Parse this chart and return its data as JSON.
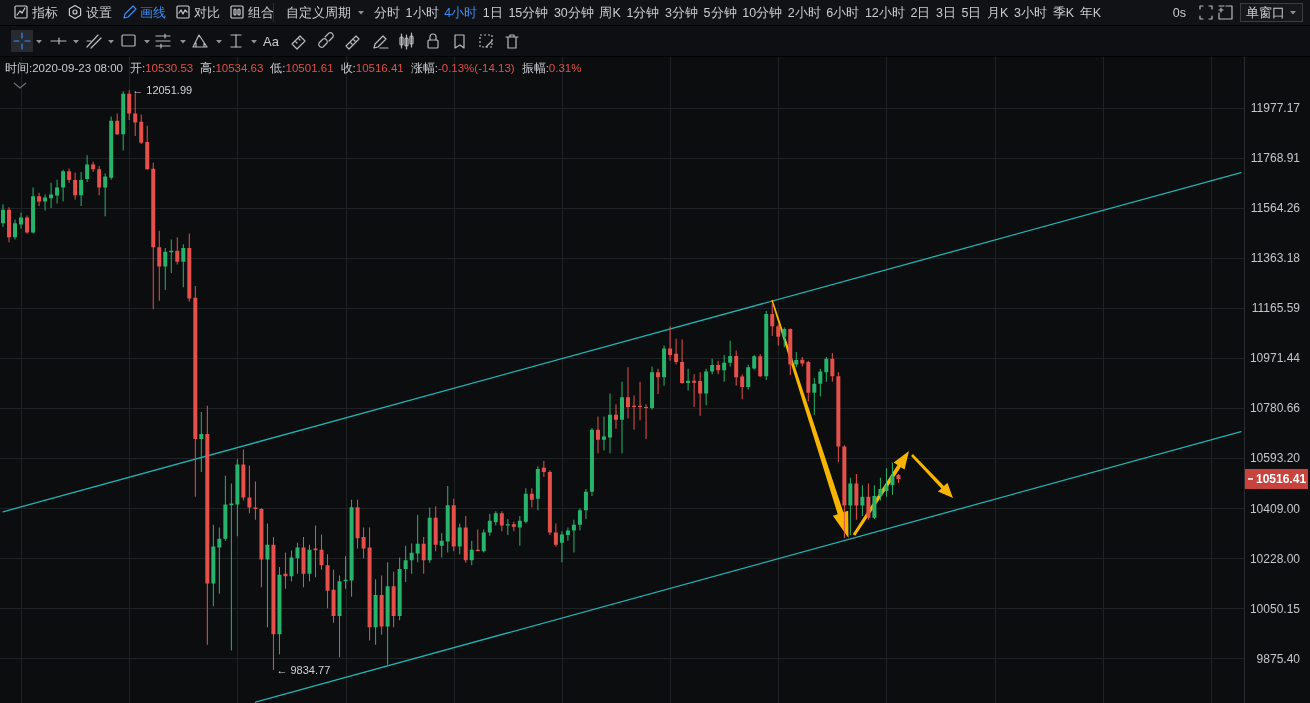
{
  "chart_data": {
    "type": "candlestick",
    "categories": [
      null,
      null,
      null,
      null,
      null,
      null,
      null,
      null,
      null,
      null,
      null,
      null,
      null,
      null,
      null,
      null,
      null,
      null,
      null,
      null,
      null,
      null,
      null,
      null,
      null,
      null,
      null,
      null,
      null,
      null,
      null,
      null,
      null,
      null,
      null,
      null,
      null,
      null,
      null,
      null,
      null,
      null,
      null,
      null,
      null,
      null,
      null,
      null,
      null,
      null,
      null,
      null,
      null,
      null,
      null,
      null,
      null,
      null,
      null,
      null,
      null,
      null,
      null,
      null,
      null,
      null,
      null,
      null,
      null,
      null,
      null,
      null,
      null,
      null,
      null,
      null,
      null,
      null,
      null,
      null,
      null,
      null,
      null,
      null,
      null,
      null,
      null,
      null,
      null,
      null,
      null,
      null,
      null,
      null,
      null,
      null,
      null,
      null,
      null,
      null,
      null,
      null,
      null,
      null,
      null,
      null,
      null,
      null,
      null,
      null,
      null,
      null,
      null,
      null,
      null,
      null,
      null,
      null,
      null,
      null,
      null,
      null,
      null,
      null,
      null,
      null,
      null,
      null,
      null,
      null,
      null,
      null,
      null,
      null,
      null,
      null,
      null,
      null,
      null,
      null,
      null,
      null,
      null,
      null,
      null,
      null,
      null,
      null,
      null,
      null,
      null,
      null,
      null,
      null,
      null,
      null,
      null,
      null,
      null,
      null,
      null,
      null,
      null,
      null,
      null,
      null,
      null,
      null,
      null,
      null,
      null,
      null,
      null,
      null,
      null,
      null,
      null,
      null,
      null,
      null,
      null,
      null,
      null,
      null,
      null,
      null,
      null,
      null,
      null,
      null,
      null,
      null,
      null,
      null,
      null,
      null,
      null,
      null,
      null,
      null,
      null,
      null,
      null,
      null,
      null,
      null,
      null
    ],
    "ohlc": [
      [
        11503,
        11580,
        11488,
        11557
      ],
      [
        11557,
        11567,
        11426,
        11446
      ],
      [
        11446,
        11518,
        11437,
        11503
      ],
      [
        11498,
        11546,
        11480,
        11526
      ],
      [
        11526,
        11534,
        11460,
        11465
      ],
      [
        11465,
        11648,
        11461,
        11612
      ],
      [
        11612,
        11626,
        11572,
        11591
      ],
      [
        11591,
        11619,
        11554,
        11607
      ],
      [
        11604,
        11667,
        11564,
        11619
      ],
      [
        11615,
        11679,
        11583,
        11648
      ],
      [
        11648,
        11720,
        11591,
        11714
      ],
      [
        11714,
        11726,
        11667,
        11678
      ],
      [
        11678,
        11709,
        11599,
        11616
      ],
      [
        11616,
        11711,
        11572,
        11678
      ],
      [
        11682,
        11780,
        11670,
        11742
      ],
      [
        11742,
        11753,
        11711,
        11723
      ],
      [
        11723,
        11736,
        11616,
        11648
      ],
      [
        11648,
        11706,
        11531,
        11693
      ],
      [
        11688,
        11941,
        11679,
        11924
      ],
      [
        11924,
        11954,
        11864,
        11867
      ],
      [
        11867,
        12048,
        11800,
        12037
      ],
      [
        12037,
        12051.99,
        11927,
        11954
      ],
      [
        11954,
        12037,
        11860,
        11916
      ],
      [
        11919,
        11950,
        11827,
        11832
      ],
      [
        11835,
        11903,
        11720,
        11723
      ],
      [
        11725,
        11749,
        11161,
        11406
      ],
      [
        11406,
        11472,
        11194,
        11330
      ],
      [
        11330,
        11403,
        11237,
        11388
      ],
      [
        11386,
        11437,
        11304,
        11392
      ],
      [
        11392,
        11446,
        11338,
        11348
      ],
      [
        11348,
        11418,
        11247,
        11403
      ],
      [
        11403,
        11461,
        11191,
        11203
      ],
      [
        11206,
        11252,
        10451,
        10665
      ],
      [
        10665,
        10766,
        10542,
        10683
      ],
      [
        10683,
        10790,
        9923,
        10138
      ],
      [
        10138,
        10349,
        10057,
        10270
      ],
      [
        10267,
        10339,
        10102,
        10298
      ],
      [
        10298,
        10528,
        10291,
        10423
      ],
      [
        10420,
        10500,
        9903,
        10426
      ],
      [
        10423,
        10590,
        10307,
        10570
      ],
      [
        10570,
        10626,
        10437,
        10448
      ],
      [
        10448,
        10565,
        10391,
        10412
      ],
      [
        10412,
        10507,
        10367,
        10406
      ],
      [
        10406,
        10409,
        10125,
        10224
      ],
      [
        10224,
        10353,
        9984,
        10277
      ],
      [
        10277,
        10305,
        9834.77,
        9959
      ],
      [
        9959,
        10197,
        9890,
        10169
      ],
      [
        10173,
        10249,
        10119,
        10164
      ],
      [
        10164,
        10256,
        10146,
        10231
      ],
      [
        10228,
        10284,
        10173,
        10267
      ],
      [
        10267,
        10305,
        10125,
        10173
      ],
      [
        10173,
        10277,
        10146,
        10259
      ],
      [
        10263,
        10346,
        10160,
        10257
      ],
      [
        10259,
        10314,
        10187,
        10203
      ],
      [
        10203,
        10242,
        10050,
        10112
      ],
      [
        10116,
        10187,
        9999,
        10023
      ],
      [
        10023,
        10166,
        9879,
        10146
      ],
      [
        10146,
        10235,
        10119,
        10151
      ],
      [
        10149,
        10440,
        10091,
        10413
      ],
      [
        10413,
        10440,
        10263,
        10300
      ],
      [
        10305,
        10339,
        10228,
        10263
      ],
      [
        10267,
        10339,
        9937,
        9984
      ],
      [
        9984,
        10153,
        9923,
        10097
      ],
      [
        10097,
        10166,
        9957,
        9986
      ],
      [
        9986,
        10214,
        9853,
        10128
      ],
      [
        10128,
        10180,
        9984,
        10023
      ],
      [
        10023,
        10231,
        10008,
        10190
      ],
      [
        10190,
        10273,
        10143,
        10221
      ],
      [
        10221,
        10281,
        10173,
        10248
      ],
      [
        10245,
        10384,
        10214,
        10280
      ],
      [
        10280,
        10305,
        10173,
        10221
      ],
      [
        10221,
        10412,
        10212,
        10374
      ],
      [
        10374,
        10416,
        10253,
        10277
      ],
      [
        10273,
        10319,
        10231,
        10291
      ],
      [
        10288,
        10490,
        10249,
        10420
      ],
      [
        10420,
        10444,
        10253,
        10270
      ],
      [
        10270,
        10353,
        10242,
        10339
      ],
      [
        10339,
        10381,
        10212,
        10221
      ],
      [
        10221,
        10291,
        10203,
        10259
      ],
      [
        10259,
        10332,
        10253,
        10254
      ],
      [
        10253,
        10332,
        10249,
        10321
      ],
      [
        10321,
        10388,
        10309,
        10363
      ],
      [
        10358,
        10398,
        10346,
        10391
      ],
      [
        10391,
        10398,
        10325,
        10346
      ],
      [
        10346,
        10370,
        10312,
        10351
      ],
      [
        10351,
        10360,
        10325,
        10342
      ],
      [
        10339,
        10381,
        10273,
        10363
      ],
      [
        10360,
        10482,
        10353,
        10462
      ],
      [
        10462,
        10482,
        10412,
        10440
      ],
      [
        10444,
        10563,
        10402,
        10553
      ],
      [
        10558,
        10583,
        10524,
        10542
      ],
      [
        10542,
        10549,
        10312,
        10321
      ],
      [
        10321,
        10353,
        10270,
        10277
      ],
      [
        10284,
        10325,
        10214,
        10314
      ],
      [
        10312,
        10339,
        10291,
        10328
      ],
      [
        10328,
        10367,
        10249,
        10349
      ],
      [
        10349,
        10409,
        10328,
        10402
      ],
      [
        10402,
        10479,
        10370,
        10469
      ],
      [
        10469,
        10706,
        10454,
        10699
      ],
      [
        10699,
        10749,
        10612,
        10662
      ],
      [
        10662,
        10749,
        10622,
        10674
      ],
      [
        10670,
        10836,
        10612,
        10756
      ],
      [
        10756,
        10795,
        10703,
        10737
      ],
      [
        10737,
        10881,
        10612,
        10822
      ],
      [
        10822,
        10936,
        10742,
        10785
      ],
      [
        10790,
        10829,
        10699,
        10785
      ],
      [
        10790,
        10881,
        10735,
        10785
      ],
      [
        10785,
        10795,
        10665,
        10781
      ],
      [
        10781,
        10939,
        10775,
        10917
      ],
      [
        10917,
        10931,
        10834,
        10898
      ],
      [
        10898,
        11020,
        10866,
        11009
      ],
      [
        11009,
        11095,
        10961,
        10983
      ],
      [
        10988,
        11046,
        10947,
        10957
      ],
      [
        10957,
        11043,
        10873,
        10876
      ],
      [
        10876,
        10931,
        10848,
        10885
      ],
      [
        10885,
        10910,
        10785,
        10877
      ],
      [
        10884,
        10917,
        10752,
        10836
      ],
      [
        10836,
        10931,
        10792,
        10920
      ],
      [
        10920,
        10969,
        10910,
        10945
      ],
      [
        10945,
        10961,
        10910,
        10925
      ],
      [
        10925,
        10983,
        10881,
        10954
      ],
      [
        10954,
        11038,
        10939,
        10980
      ],
      [
        10980,
        11001,
        10866,
        10898
      ],
      [
        10901,
        10910,
        10814,
        10861
      ],
      [
        10861,
        10946,
        10851,
        10936
      ],
      [
        10932,
        10983,
        10928,
        10979
      ],
      [
        10979,
        10986,
        10898,
        10902
      ],
      [
        10902,
        11154,
        10888,
        11142
      ],
      [
        11142,
        11184,
        11057,
        11095
      ],
      [
        11095,
        11102,
        11020,
        11054
      ],
      [
        11054,
        11090,
        11013,
        11084
      ],
      [
        11084,
        11087,
        10907,
        10947
      ],
      [
        10947,
        10995,
        10936,
        10964
      ],
      [
        10965,
        10976,
        10939,
        10951
      ],
      [
        10957,
        10961,
        10807,
        10839
      ],
      [
        10839,
        10895,
        10756,
        10873
      ],
      [
        10873,
        10931,
        10825,
        10920
      ],
      [
        10917,
        10976,
        10881,
        10969
      ],
      [
        10969,
        10991,
        10881,
        10902
      ],
      [
        10902,
        10917,
        10579,
        10637
      ],
      [
        10637,
        10641,
        10300,
        10419
      ],
      [
        10419,
        10521,
        10312,
        10500
      ],
      [
        10500,
        10535,
        10367,
        10419
      ],
      [
        10419,
        10493,
        10381,
        10451
      ],
      [
        10451,
        10500,
        10367,
        10374
      ],
      [
        10374,
        10493,
        10370,
        10454
      ],
      [
        10454,
        10521,
        10437,
        10479
      ],
      [
        10472,
        10556,
        10451,
        10493
      ],
      [
        10493,
        10577,
        10458,
        10528
      ],
      [
        10530.53,
        10534.63,
        10501.61,
        10516.41
      ],
      null,
      null,
      null,
      null,
      null,
      null,
      null,
      null,
      null,
      null,
      null,
      null,
      null,
      null,
      null,
      null,
      null,
      null,
      null,
      null,
      null,
      null,
      null,
      null,
      null,
      null,
      null,
      null,
      null,
      null,
      null,
      null,
      null,
      null,
      null,
      null,
      null,
      null,
      null,
      null,
      null,
      null,
      null,
      null,
      null,
      null,
      null,
      null,
      null,
      null,
      null,
      null,
      null,
      null,
      null,
      null,
      null
    ],
    "colors": [
      "#27b36c",
      "#e6504a",
      "#27b36c",
      "#27b36c",
      "#e6504a",
      "#27b36c",
      "#e6504a",
      "#27b36c",
      "#27b36c",
      "#27b36c",
      "#27b36c",
      "#e6504a",
      "#e6504a",
      "#27b36c",
      "#27b36c",
      "#e6504a",
      "#e6504a",
      "#27b36c",
      "#27b36c",
      "#e6504a",
      "#27b36c",
      "#e6504a",
      "#e6504a",
      "#e6504a",
      "#e6504a",
      "#e6504a",
      "#e6504a",
      "#27b36c",
      "#27b36c",
      "#e6504a",
      "#27b36c",
      "#e6504a",
      "#e6504a",
      "#27b36c",
      "#e6504a",
      "#27b36c",
      "#27b36c",
      "#27b36c",
      "#27b36c",
      "#27b36c",
      "#e6504a",
      "#e6504a",
      "#e6504a",
      "#e6504a",
      "#27b36c",
      "#e6504a",
      "#27b36c",
      "#e6504a",
      "#27b36c",
      "#27b36c",
      "#e6504a",
      "#27b36c",
      "#e6504a",
      "#e6504a",
      "#e6504a",
      "#e6504a",
      "#27b36c",
      "#27b36c",
      "#27b36c",
      "#e6504a",
      "#e6504a",
      "#e6504a",
      "#27b36c",
      "#e6504a",
      "#27b36c",
      "#e6504a",
      "#27b36c",
      "#27b36c",
      "#27b36c",
      "#27b36c",
      "#e6504a",
      "#27b36c",
      "#e6504a",
      "#27b36c",
      "#27b36c",
      "#e6504a",
      "#27b36c",
      "#e6504a",
      "#27b36c",
      "#e6504a",
      "#27b36c",
      "#27b36c",
      "#27b36c",
      "#e6504a",
      "#27b36c",
      "#e6504a",
      "#27b36c",
      "#27b36c",
      "#e6504a",
      "#27b36c",
      "#e6504a",
      "#e6504a",
      "#e6504a",
      "#27b36c",
      "#27b36c",
      "#27b36c",
      "#27b36c",
      "#27b36c",
      "#27b36c",
      "#e6504a",
      "#27b36c",
      "#27b36c",
      "#e6504a",
      "#27b36c",
      "#e6504a",
      "#e6504a",
      "#e6504a",
      "#e6504a",
      "#27b36c",
      "#e6504a",
      "#27b36c",
      "#e6504a",
      "#e6504a",
      "#e6504a",
      "#27b36c",
      "#e6504a",
      "#e6504a",
      "#27b36c",
      "#27b36c",
      "#e6504a",
      "#27b36c",
      "#27b36c",
      "#e6504a",
      "#e6504a",
      "#27b36c",
      "#27b36c",
      "#e6504a",
      "#27b36c",
      "#e6504a",
      "#e6504a",
      "#27b36c",
      "#e6504a",
      "#27b36c",
      "#e6504a",
      "#e6504a",
      "#27b36c",
      "#27b36c",
      "#27b36c",
      "#e6504a",
      "#e6504a",
      "#e6504a",
      "#27b36c",
      "#e6504a",
      "#27b36c",
      "#e6504a",
      "#27b36c",
      "#27b36c",
      "#27b36c",
      "#27b36c",
      "#e6504a",
      null,
      null,
      null,
      null,
      null,
      null,
      null,
      null,
      null,
      null,
      null,
      null,
      null,
      null,
      null,
      null,
      null,
      null,
      null,
      null,
      null,
      null,
      null,
      null,
      null,
      null,
      null,
      null,
      null,
      null,
      null,
      null,
      null,
      null,
      null,
      null,
      null,
      null,
      null,
      null,
      null,
      null,
      null,
      null,
      null,
      null,
      null,
      null,
      null,
      null,
      null,
      null,
      null,
      null,
      null,
      null,
      null
    ],
    "series": [
      {
        "type": "line",
        "color": "#22b1b1",
        "values": [
          10396,
          null,
          null,
          null,
          null,
          null,
          null,
          null,
          null,
          null,
          null,
          null,
          null,
          null,
          null,
          null,
          null,
          null,
          null,
          null,
          null,
          null,
          null,
          null,
          null,
          null,
          null,
          null,
          null,
          null,
          null,
          null,
          null,
          null,
          null,
          null,
          null,
          null,
          null,
          null,
          null,
          null,
          null,
          null,
          null,
          null,
          null,
          null,
          null,
          null,
          null,
          null,
          null,
          null,
          null,
          null,
          null,
          null,
          null,
          null,
          null,
          null,
          null,
          null,
          null,
          null,
          null,
          null,
          null,
          null,
          null,
          null,
          null,
          null,
          null,
          null,
          null,
          null,
          null,
          null,
          null,
          null,
          null,
          null,
          null,
          null,
          null,
          null,
          null,
          null,
          null,
          null,
          null,
          null,
          null,
          null,
          null,
          null,
          null,
          null,
          null,
          null,
          null,
          null,
          null,
          null,
          null,
          null,
          null,
          null,
          null,
          null,
          null,
          null,
          null,
          null,
          null,
          null,
          null,
          null,
          null,
          null,
          null,
          null,
          null,
          null,
          null,
          null,
          null,
          null,
          null,
          null,
          null,
          null,
          null,
          null,
          null,
          null,
          null,
          null,
          null,
          null,
          null,
          null,
          null,
          null,
          null,
          null,
          null,
          null,
          null,
          null,
          null,
          null,
          null,
          null,
          null,
          null,
          null,
          null,
          null,
          null,
          null,
          null,
          null,
          null,
          null,
          null,
          null,
          null,
          null,
          null,
          null,
          null,
          null,
          null,
          null,
          null,
          null,
          null,
          null,
          null,
          null,
          null,
          null,
          null,
          null,
          null,
          null,
          null,
          null,
          null,
          null,
          null,
          null,
          null,
          null,
          null,
          null,
          null,
          null,
          null,
          null,
          null,
          null,
          null,
          11709
        ]
      },
      {
        "type": "line",
        "color": "#22b1b1",
        "values": [
          null,
          null,
          null,
          null,
          null,
          null,
          null,
          null,
          null,
          null,
          null,
          null,
          null,
          null,
          null,
          null,
          null,
          null,
          null,
          null,
          null,
          null,
          null,
          null,
          null,
          null,
          null,
          null,
          null,
          null,
          null,
          null,
          null,
          null,
          null,
          null,
          null,
          null,
          null,
          null,
          null,
          null,
          9725,
          null,
          null,
          null,
          null,
          null,
          null,
          null,
          null,
          null,
          null,
          null,
          null,
          null,
          null,
          null,
          null,
          null,
          null,
          null,
          null,
          null,
          null,
          null,
          null,
          null,
          null,
          null,
          null,
          null,
          null,
          null,
          null,
          null,
          null,
          null,
          null,
          null,
          null,
          null,
          null,
          null,
          null,
          null,
          null,
          null,
          null,
          null,
          null,
          null,
          null,
          null,
          null,
          null,
          null,
          null,
          null,
          null,
          null,
          null,
          null,
          null,
          null,
          null,
          null,
          null,
          null,
          null,
          null,
          null,
          null,
          null,
          null,
          null,
          null,
          null,
          null,
          null,
          null,
          null,
          null,
          null,
          null,
          null,
          null,
          null,
          null,
          null,
          null,
          null,
          null,
          null,
          null,
          null,
          null,
          null,
          null,
          null,
          null,
          null,
          null,
          null,
          null,
          null,
          null,
          null,
          null,
          null,
          null,
          null,
          null,
          null,
          null,
          null,
          null,
          null,
          null,
          null,
          null,
          null,
          null,
          null,
          null,
          null,
          null,
          null,
          null,
          null,
          null,
          null,
          null,
          null,
          null,
          null,
          null,
          null,
          null,
          null,
          null,
          null,
          null,
          null,
          null,
          null,
          null,
          null,
          null,
          null,
          null,
          null,
          null,
          null,
          null,
          null,
          null,
          null,
          null,
          null,
          null,
          null,
          null,
          null,
          null,
          null,
          10692
        ]
      }
    ],
    "log": true,
    "ylim": [
      9722,
      12193
    ],
    "yticks": [
      11977.17,
      11768.91,
      11564.26,
      11363.18,
      11165.59,
      10971.44,
      10780.66,
      {
        "value": 10593.2,
        "label": "10593.20"
      },
      {
        "value": 10409,
        "label": "10409.00"
      },
      {
        "value": 10228,
        "label": "10228.00"
      },
      10050.15,
      {
        "value": 9875.4,
        "label": "9875.40"
      }
    ],
    "grid": true,
    "tick_labels": "y",
    "annotations": [
      "指标",
      "设置",
      "画线",
      "对比",
      "组合",
      "自定义周期",
      "分时",
      "1小时",
      "4小时",
      "1日",
      "15分钟",
      "30分钟",
      "周K",
      "1分钟",
      "3分钟",
      "5分钟",
      "10分钟",
      "2小时",
      "6小时",
      "12小时",
      "2日",
      "3日",
      "5日",
      "月K",
      "3小时",
      "季K",
      "年K",
      "0s",
      "单窗口",
      "Aa",
      "时间:2020-09-23 08:00",
      "开:10530.53",
      "高:10534.63",
      "低:10501.61",
      "收:10516.41",
      "涨幅:-0.13%(-14.13)",
      "振幅:0.31%",
      "← 12051.99",
      "← 9834.77",
      "10516.41"
    ]
  }
}
